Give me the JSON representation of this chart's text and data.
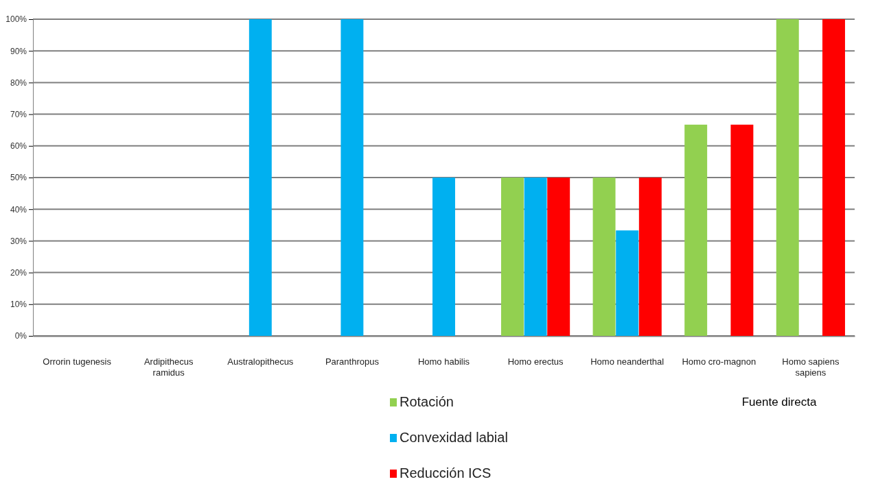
{
  "chart_data": {
    "type": "bar",
    "categories": [
      "Orrorin tugenesis",
      "Ardipithecus ramidus",
      "Australopithecus",
      "Paranthropus",
      "Homo habilis",
      "Homo erectus",
      "Homo neanderthal",
      "Homo cro-magnon",
      "Homo sapiens sapiens"
    ],
    "series": [
      {
        "name": "Rotación",
        "color": "#92d050",
        "values": [
          0,
          0,
          0,
          0,
          0,
          50,
          50,
          66.7,
          100
        ]
      },
      {
        "name": "Convexidad labial",
        "color": "#00b0f0",
        "values": [
          0,
          0,
          100,
          100,
          50,
          50,
          33.3,
          0,
          0
        ]
      },
      {
        "name": "Reducción ICS",
        "color": "#ff0000",
        "values": [
          0,
          0,
          0,
          0,
          0,
          50,
          50,
          66.7,
          100
        ]
      }
    ],
    "ylim": [
      0,
      100
    ],
    "yticks": [
      {
        "value": 0,
        "label": "0%"
      },
      {
        "value": 10,
        "label": "10%"
      },
      {
        "value": 20,
        "label": "20%"
      },
      {
        "value": 30,
        "label": "30%"
      },
      {
        "value": 40,
        "label": "40%"
      },
      {
        "value": 50,
        "label": "50%"
      },
      {
        "value": 60,
        "label": "60%"
      },
      {
        "value": 70,
        "label": "70%"
      },
      {
        "value": 80,
        "label": "80%"
      },
      {
        "value": 90,
        "label": "90%"
      },
      {
        "value": 100,
        "label": "100%"
      }
    ],
    "grid": "y",
    "legend": "bottom",
    "annotations": [
      "Fuente directa"
    ]
  }
}
